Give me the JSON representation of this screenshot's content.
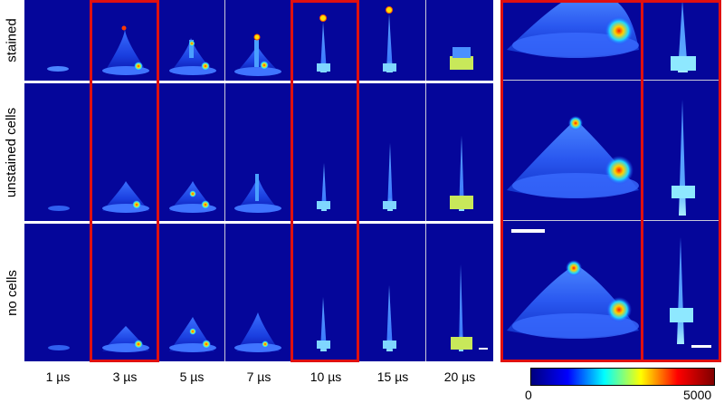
{
  "rows": [
    {
      "label": "stained"
    },
    {
      "label": "unstained cells"
    },
    {
      "label": "no cells"
    }
  ],
  "times": [
    "1 µs",
    "3 µs",
    "5 µs",
    "7 µs",
    "10 µs",
    "15 µs",
    "20 µs"
  ],
  "colorbar": {
    "min_label": "0",
    "max_label": "5000",
    "colormap": [
      "#00007f",
      "#0000ff",
      "#00ffff",
      "#ffff00",
      "#ff0000",
      "#7f0000"
    ]
  },
  "colors": {
    "background_panel": "#05069a",
    "highlight_box": "#e01010"
  }
}
